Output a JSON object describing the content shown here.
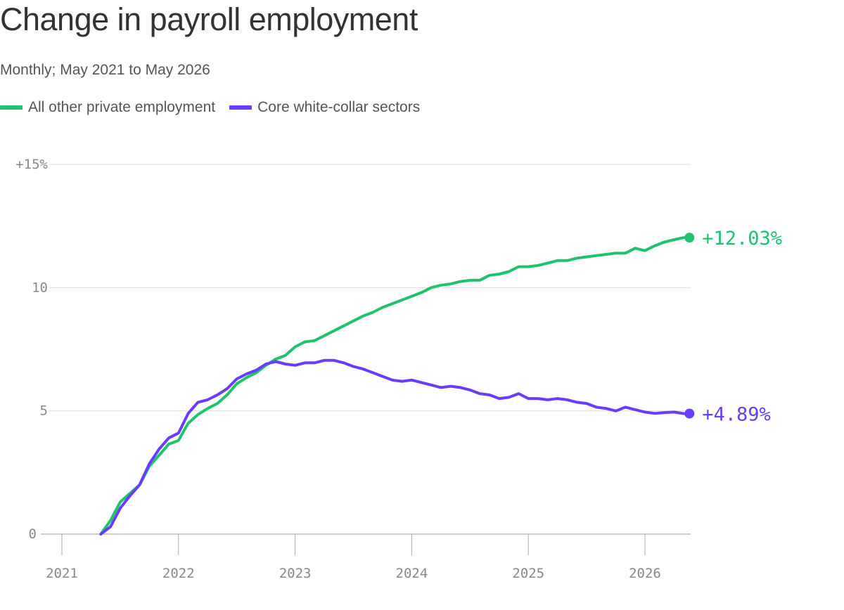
{
  "chart_data": {
    "type": "line",
    "title": "Change in payroll employment",
    "subtitle": "Monthly; May 2021 to May 2026",
    "xlabel": "",
    "ylabel": "",
    "ylim": [
      0,
      15
    ],
    "x_ticks": [
      "2021",
      "2022",
      "2023",
      "2024",
      "2025",
      "2026"
    ],
    "y_ticks": [
      {
        "value": 0,
        "label": "0"
      },
      {
        "value": 5,
        "label": "5"
      },
      {
        "value": 10,
        "label": "10"
      },
      {
        "value": 15,
        "label": "+15%"
      }
    ],
    "grid": "horizontal",
    "legend_position": "top-left",
    "series": [
      {
        "name": "All other private employment",
        "color": "#1ec26f",
        "end_label": "+12.03%",
        "points": [
          [
            "2021-05",
            0
          ],
          [
            "2021-06",
            0.55
          ],
          [
            "2021-07",
            1.3
          ],
          [
            "2021-08",
            1.65
          ],
          [
            "2021-09",
            2.0
          ],
          [
            "2021-10",
            2.75
          ],
          [
            "2021-11",
            3.2
          ],
          [
            "2021-12",
            3.65
          ],
          [
            "2022-01",
            3.8
          ],
          [
            "2022-02",
            4.5
          ],
          [
            "2022-03",
            4.85
          ],
          [
            "2022-04",
            5.1
          ],
          [
            "2022-05",
            5.3
          ],
          [
            "2022-06",
            5.65
          ],
          [
            "2022-07",
            6.1
          ],
          [
            "2022-08",
            6.35
          ],
          [
            "2022-09",
            6.55
          ],
          [
            "2022-10",
            6.85
          ],
          [
            "2022-11",
            7.1
          ],
          [
            "2022-12",
            7.25
          ],
          [
            "2023-01",
            7.6
          ],
          [
            "2023-02",
            7.8
          ],
          [
            "2023-03",
            7.85
          ],
          [
            "2023-04",
            8.05
          ],
          [
            "2023-05",
            8.25
          ],
          [
            "2023-06",
            8.45
          ],
          [
            "2023-07",
            8.65
          ],
          [
            "2023-08",
            8.85
          ],
          [
            "2023-09",
            9.0
          ],
          [
            "2023-10",
            9.2
          ],
          [
            "2023-11",
            9.35
          ],
          [
            "2023-12",
            9.5
          ],
          [
            "2024-01",
            9.65
          ],
          [
            "2024-02",
            9.8
          ],
          [
            "2024-03",
            10.0
          ],
          [
            "2024-04",
            10.1
          ],
          [
            "2024-05",
            10.15
          ],
          [
            "2024-06",
            10.25
          ],
          [
            "2024-07",
            10.3
          ],
          [
            "2024-08",
            10.3
          ],
          [
            "2024-09",
            10.5
          ],
          [
            "2024-10",
            10.55
          ],
          [
            "2024-11",
            10.65
          ],
          [
            "2024-12",
            10.85
          ],
          [
            "2025-01",
            10.85
          ],
          [
            "2025-02",
            10.9
          ],
          [
            "2025-03",
            11.0
          ],
          [
            "2025-04",
            11.1
          ],
          [
            "2025-05",
            11.1
          ],
          [
            "2025-06",
            11.2
          ],
          [
            "2025-07",
            11.25
          ],
          [
            "2025-08",
            11.3
          ],
          [
            "2025-09",
            11.35
          ],
          [
            "2025-10",
            11.4
          ],
          [
            "2025-11",
            11.4
          ],
          [
            "2025-12",
            11.6
          ],
          [
            "2026-01",
            11.5
          ],
          [
            "2026-02",
            11.7
          ],
          [
            "2026-03",
            11.85
          ],
          [
            "2026-04",
            11.95
          ],
          [
            "2026-05",
            12.03
          ]
        ]
      },
      {
        "name": "Core white-collar sectors",
        "color": "#6a3cff",
        "end_label": "+4.89%",
        "points": [
          [
            "2021-05",
            0
          ],
          [
            "2021-06",
            0.3
          ],
          [
            "2021-07",
            1.05
          ],
          [
            "2021-08",
            1.55
          ],
          [
            "2021-09",
            2.0
          ],
          [
            "2021-10",
            2.85
          ],
          [
            "2021-11",
            3.45
          ],
          [
            "2021-12",
            3.9
          ],
          [
            "2022-01",
            4.1
          ],
          [
            "2022-02",
            4.9
          ],
          [
            "2022-03",
            5.35
          ],
          [
            "2022-04",
            5.45
          ],
          [
            "2022-05",
            5.65
          ],
          [
            "2022-06",
            5.9
          ],
          [
            "2022-07",
            6.3
          ],
          [
            "2022-08",
            6.5
          ],
          [
            "2022-09",
            6.65
          ],
          [
            "2022-10",
            6.9
          ],
          [
            "2022-11",
            7.0
          ],
          [
            "2022-12",
            6.9
          ],
          [
            "2023-01",
            6.85
          ],
          [
            "2023-02",
            6.95
          ],
          [
            "2023-03",
            6.95
          ],
          [
            "2023-04",
            7.05
          ],
          [
            "2023-05",
            7.05
          ],
          [
            "2023-06",
            6.95
          ],
          [
            "2023-07",
            6.8
          ],
          [
            "2023-08",
            6.7
          ],
          [
            "2023-09",
            6.55
          ],
          [
            "2023-10",
            6.4
          ],
          [
            "2023-11",
            6.25
          ],
          [
            "2023-12",
            6.2
          ],
          [
            "2024-01",
            6.25
          ],
          [
            "2024-02",
            6.15
          ],
          [
            "2024-03",
            6.05
          ],
          [
            "2024-04",
            5.95
          ],
          [
            "2024-05",
            6.0
          ],
          [
            "2024-06",
            5.95
          ],
          [
            "2024-07",
            5.85
          ],
          [
            "2024-08",
            5.7
          ],
          [
            "2024-09",
            5.65
          ],
          [
            "2024-10",
            5.5
          ],
          [
            "2024-11",
            5.55
          ],
          [
            "2024-12",
            5.7
          ],
          [
            "2025-01",
            5.5
          ],
          [
            "2025-02",
            5.5
          ],
          [
            "2025-03",
            5.45
          ],
          [
            "2025-04",
            5.5
          ],
          [
            "2025-05",
            5.45
          ],
          [
            "2025-06",
            5.35
          ],
          [
            "2025-07",
            5.3
          ],
          [
            "2025-08",
            5.15
          ],
          [
            "2025-09",
            5.1
          ],
          [
            "2025-10",
            5.0
          ],
          [
            "2025-11",
            5.15
          ],
          [
            "2025-12",
            5.05
          ],
          [
            "2026-01",
            4.95
          ],
          [
            "2026-02",
            4.9
          ],
          [
            "2026-03",
            4.93
          ],
          [
            "2026-04",
            4.95
          ],
          [
            "2026-05",
            4.89
          ]
        ]
      }
    ]
  }
}
